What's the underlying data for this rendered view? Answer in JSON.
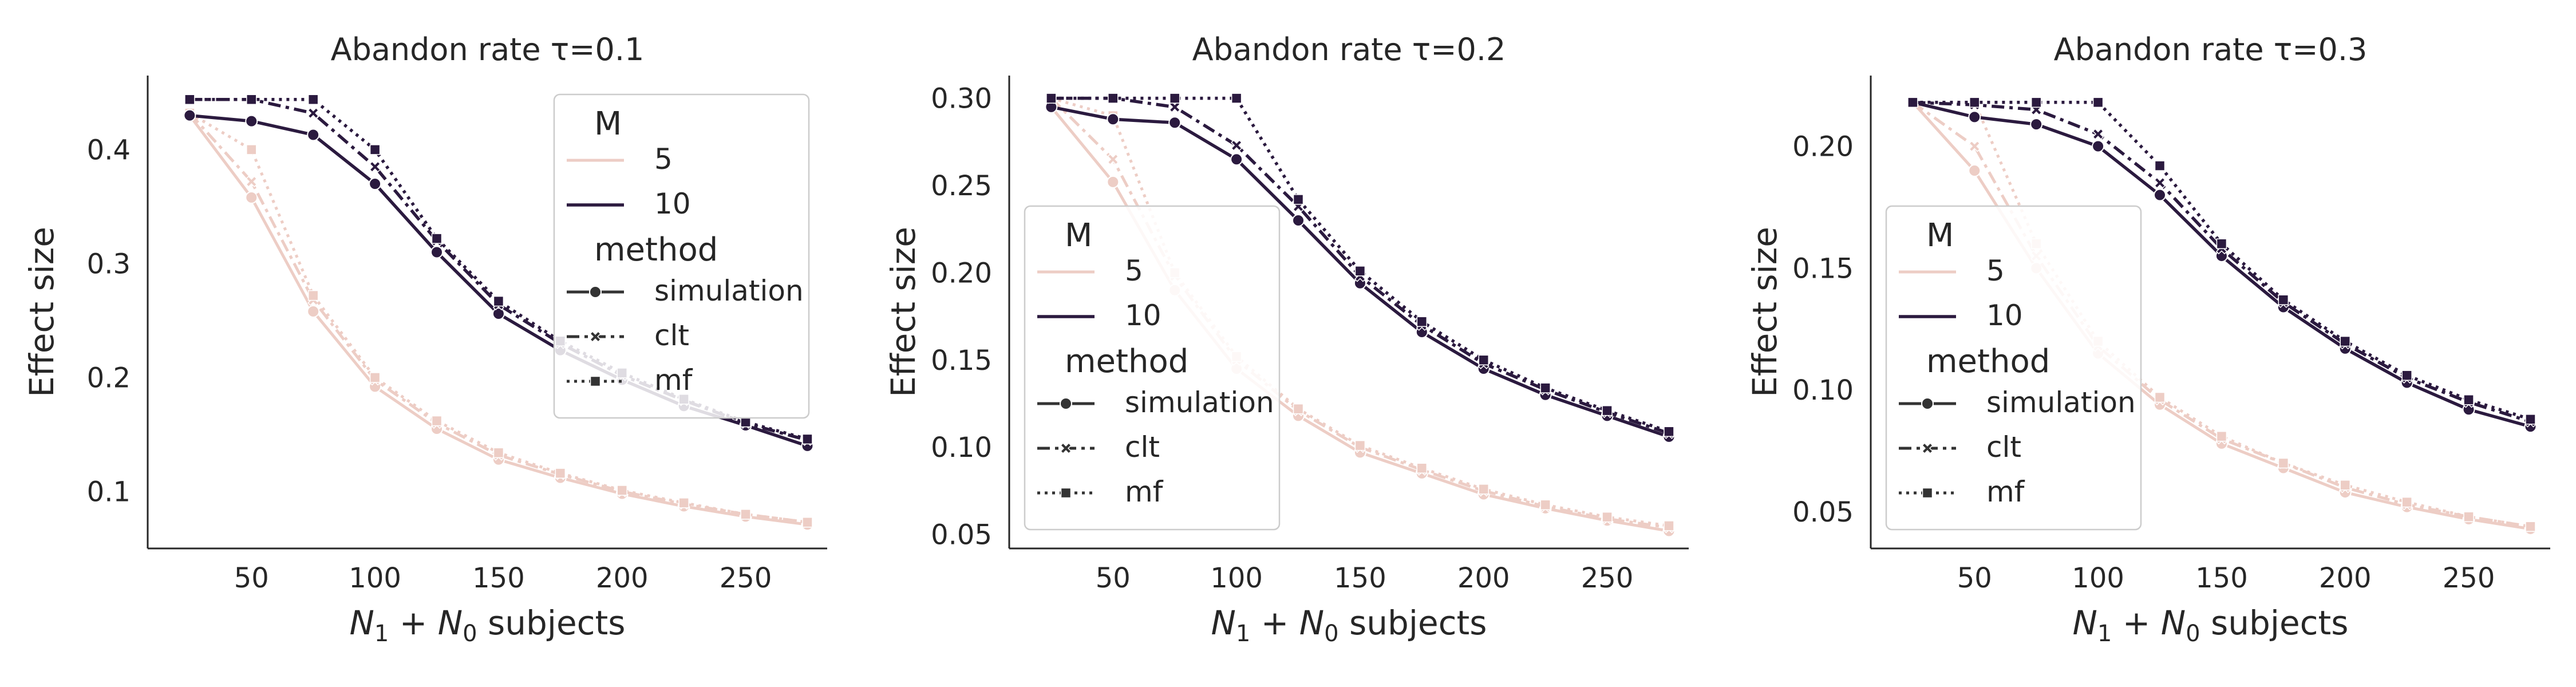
{
  "colors": {
    "M5": "#edcdc5",
    "M10": "#2b1a3f",
    "axis": "#262626",
    "legend_frame": "#cccccc"
  },
  "legend": {
    "title_M": "M",
    "title_method": "method",
    "M_entries": [
      "5",
      "10"
    ],
    "method_entries": [
      "simulation",
      "clt",
      "mf"
    ]
  },
  "chart_data": [
    {
      "type": "line",
      "title": "Abandon rate τ=0.1",
      "xlabel_main": "N",
      "xlabel_sub1": "1",
      "xlabel_plus": " + N",
      "xlabel_sub0": "0",
      "xlabel_rest": " subjects",
      "ylabel": "Effect size",
      "xlim": [
        8,
        283
      ],
      "ylim": [
        0.05,
        0.465
      ],
      "xticks": [
        50,
        100,
        150,
        200,
        250
      ],
      "yticks": [
        0.1,
        0.2,
        0.3,
        0.4
      ],
      "ytick_labels": [
        "0.1",
        "0.2",
        "0.3",
        "0.4"
      ],
      "legend_position": "upper right",
      "x": [
        25,
        50,
        75,
        100,
        125,
        150,
        175,
        200,
        225,
        250,
        275
      ],
      "series": [
        {
          "M": "5",
          "method": "simulation",
          "values": [
            0.43,
            0.358,
            0.258,
            0.192,
            0.155,
            0.128,
            0.112,
            0.098,
            0.087,
            0.078,
            0.071
          ]
        },
        {
          "M": "5",
          "method": "clt",
          "values": [
            0.432,
            0.372,
            0.268,
            0.198,
            0.16,
            0.132,
            0.115,
            0.1,
            0.089,
            0.08,
            0.073
          ]
        },
        {
          "M": "5",
          "method": "mf",
          "values": [
            0.432,
            0.4,
            0.272,
            0.2,
            0.162,
            0.134,
            0.116,
            0.101,
            0.09,
            0.08,
            0.073
          ]
        },
        {
          "M": "10",
          "method": "simulation",
          "values": [
            0.43,
            0.425,
            0.413,
            0.37,
            0.31,
            0.256,
            0.224,
            0.198,
            0.175,
            0.158,
            0.14
          ]
        },
        {
          "M": "10",
          "method": "clt",
          "values": [
            0.444,
            0.444,
            0.432,
            0.385,
            0.32,
            0.264,
            0.23,
            0.202,
            0.18,
            0.16,
            0.145
          ]
        },
        {
          "M": "10",
          "method": "mf",
          "values": [
            0.444,
            0.444,
            0.444,
            0.4,
            0.322,
            0.267,
            0.232,
            0.204,
            0.181,
            0.161,
            0.146
          ]
        }
      ]
    },
    {
      "type": "line",
      "title": "Abandon rate τ=0.2",
      "xlabel_main": "N",
      "xlabel_sub1": "1",
      "xlabel_plus": " + N",
      "xlabel_sub0": "0",
      "xlabel_rest": " subjects",
      "ylabel": "Effect size",
      "xlim": [
        8,
        283
      ],
      "ylim": [
        0.042,
        0.313
      ],
      "xticks": [
        50,
        100,
        150,
        200,
        250
      ],
      "yticks": [
        0.05,
        0.1,
        0.15,
        0.2,
        0.25,
        0.3
      ],
      "ytick_labels": [
        "0.05",
        "0.10",
        "0.15",
        "0.20",
        "0.25",
        "0.30"
      ],
      "legend_position": "lower left",
      "x": [
        25,
        50,
        75,
        100,
        125,
        150,
        175,
        200,
        225,
        250,
        275
      ],
      "series": [
        {
          "M": "5",
          "method": "simulation",
          "values": [
            0.295,
            0.252,
            0.19,
            0.145,
            0.118,
            0.097,
            0.085,
            0.073,
            0.065,
            0.058,
            0.052
          ]
        },
        {
          "M": "5",
          "method": "clt",
          "values": [
            0.3,
            0.265,
            0.198,
            0.15,
            0.121,
            0.1,
            0.087,
            0.075,
            0.066,
            0.059,
            0.054
          ]
        },
        {
          "M": "5",
          "method": "mf",
          "values": [
            0.3,
            0.29,
            0.2,
            0.152,
            0.122,
            0.101,
            0.088,
            0.076,
            0.067,
            0.06,
            0.055
          ]
        },
        {
          "M": "10",
          "method": "simulation",
          "values": [
            0.295,
            0.288,
            0.286,
            0.265,
            0.23,
            0.194,
            0.166,
            0.145,
            0.13,
            0.118,
            0.106
          ]
        },
        {
          "M": "10",
          "method": "clt",
          "values": [
            0.3,
            0.3,
            0.295,
            0.273,
            0.238,
            0.198,
            0.17,
            0.148,
            0.133,
            0.12,
            0.108
          ]
        },
        {
          "M": "10",
          "method": "mf",
          "values": [
            0.3,
            0.3,
            0.3,
            0.3,
            0.242,
            0.201,
            0.172,
            0.15,
            0.134,
            0.121,
            0.109
          ]
        }
      ]
    },
    {
      "type": "line",
      "title": "Abandon rate τ=0.3",
      "xlabel_main": "N",
      "xlabel_sub1": "1",
      "xlabel_plus": " + N",
      "xlabel_sub0": "0",
      "xlabel_rest": " subjects",
      "ylabel": "Effect size",
      "xlim": [
        8,
        283
      ],
      "ylim": [
        0.035,
        0.229
      ],
      "xticks": [
        50,
        100,
        150,
        200,
        250
      ],
      "yticks": [
        0.05,
        0.1,
        0.15,
        0.2
      ],
      "ytick_labels": [
        "0.05",
        "0.10",
        "0.15",
        "0.20"
      ],
      "legend_position": "lower left",
      "x": [
        25,
        50,
        75,
        100,
        125,
        150,
        175,
        200,
        225,
        250,
        275
      ],
      "series": [
        {
          "M": "5",
          "method": "simulation",
          "values": [
            0.218,
            0.19,
            0.15,
            0.115,
            0.094,
            0.078,
            0.068,
            0.058,
            0.052,
            0.047,
            0.043
          ]
        },
        {
          "M": "5",
          "method": "clt",
          "values": [
            0.218,
            0.2,
            0.155,
            0.118,
            0.096,
            0.08,
            0.07,
            0.06,
            0.053,
            0.048,
            0.044
          ]
        },
        {
          "M": "5",
          "method": "mf",
          "values": [
            0.218,
            0.218,
            0.16,
            0.12,
            0.097,
            0.081,
            0.07,
            0.061,
            0.054,
            0.048,
            0.044
          ]
        },
        {
          "M": "10",
          "method": "simulation",
          "values": [
            0.218,
            0.212,
            0.209,
            0.2,
            0.18,
            0.155,
            0.134,
            0.117,
            0.103,
            0.092,
            0.085
          ]
        },
        {
          "M": "10",
          "method": "clt",
          "values": [
            0.218,
            0.217,
            0.215,
            0.205,
            0.185,
            0.158,
            0.136,
            0.119,
            0.105,
            0.095,
            0.087
          ]
        },
        {
          "M": "10",
          "method": "mf",
          "values": [
            0.218,
            0.218,
            0.218,
            0.218,
            0.192,
            0.16,
            0.137,
            0.12,
            0.106,
            0.096,
            0.088
          ]
        }
      ]
    }
  ]
}
